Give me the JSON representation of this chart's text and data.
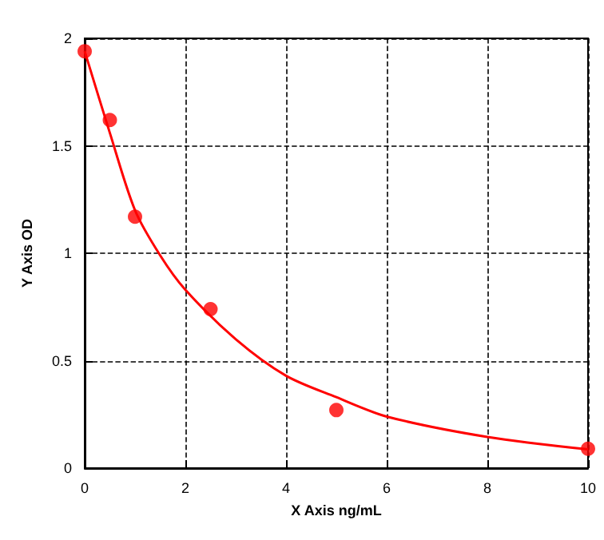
{
  "chart_data": {
    "type": "scatter",
    "xlabel": "X Axis ng/mL",
    "ylabel": "Y Axis OD",
    "xlim": [
      0,
      10
    ],
    "xticks": [
      0,
      2,
      4,
      6,
      8,
      10
    ],
    "ylim": [
      0,
      2
    ],
    "yticks": [
      0,
      0.5,
      1,
      1.5,
      2
    ],
    "grid": true,
    "marker": "circle",
    "series": [
      {
        "color": "#ff0000",
        "x": [
          0,
          0.5,
          1,
          2.5,
          5,
          10
        ],
        "values": [
          1.94,
          1.62,
          1.17,
          0.74,
          0.27,
          0.09
        ]
      },
      {
        "type": "line",
        "color": "#ff0000",
        "marker": "none",
        "x": [
          0,
          0.5,
          1,
          1.5,
          2,
          3,
          4,
          5,
          6,
          8,
          10
        ],
        "values": [
          1.94,
          1.56,
          1.2,
          0.99,
          0.83,
          0.6,
          0.43,
          0.33,
          0.24,
          0.145,
          0.087
        ]
      }
    ]
  }
}
